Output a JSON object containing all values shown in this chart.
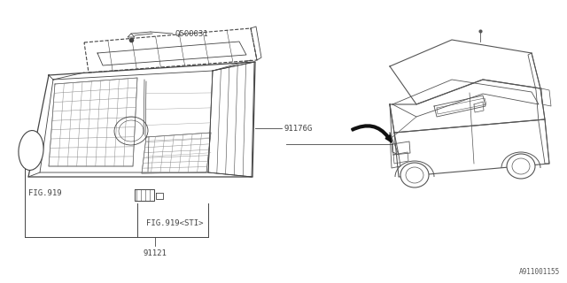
{
  "bg_color": "#ffffff",
  "line_color": "#444444",
  "label_0500031": "Q500031",
  "label_91176G": "91176G",
  "label_FIG919": "FIG.919",
  "label_FIG919STI": "FIG.919<STI>",
  "label_91121": "91121",
  "label_watermark": "A911001155",
  "font_size": 6.5,
  "font_family": "monospace",
  "grille_color": "#555555",
  "hatch_color": "#777777",
  "car_color": "#555555"
}
